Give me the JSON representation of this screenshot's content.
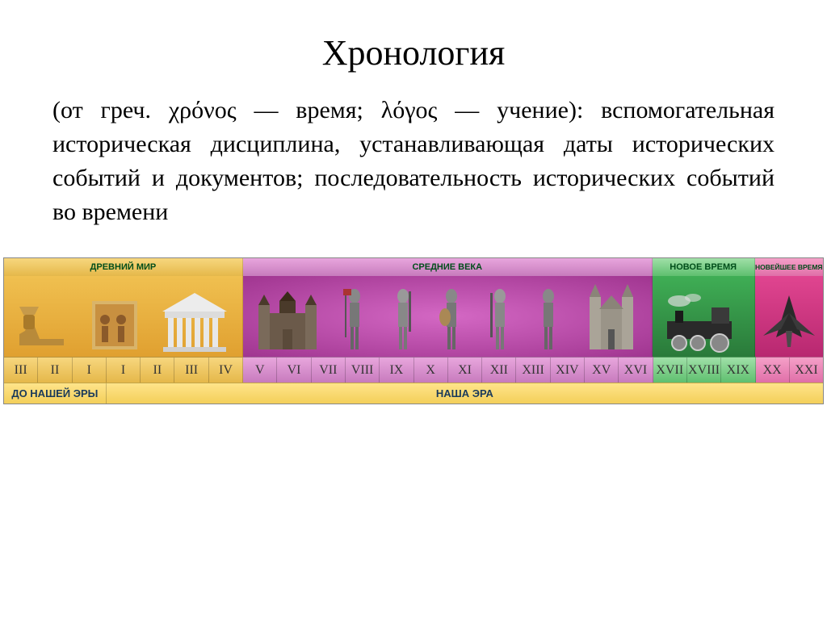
{
  "title": "Хронология",
  "definition": "(от греч. χρόνος — время; λόγος — учение): вспомогательная историческая дисциплина, устанавливающая даты исторических событий и документов; последовательность исторических событий во времени",
  "timeline": {
    "eras": [
      {
        "key": "ancient",
        "label": "ДРЕВНИЙ МИР",
        "width_pct": 29.17,
        "header_bg": "linear-gradient(180deg,#f7d77e,#e5b84a)"
      },
      {
        "key": "middle",
        "label": "СРЕДНИЕ ВЕКА",
        "width_pct": 50.0,
        "header_bg": "linear-gradient(180deg,#e8a6dd,#c77bbd)"
      },
      {
        "key": "modern",
        "label": "НОВОЕ ВРЕМЯ",
        "width_pct": 12.5,
        "header_bg": "linear-gradient(180deg,#a0e0a8,#5fbf6f)"
      },
      {
        "key": "newest",
        "label": "НОВЕЙШЕЕ ВРЕМЯ",
        "width_pct": 8.33,
        "header_bg": "linear-gradient(180deg,#f5a0c8,#e06fa8)"
      }
    ],
    "centuries": [
      {
        "num": "III",
        "era": "ancient"
      },
      {
        "num": "II",
        "era": "ancient"
      },
      {
        "num": "I",
        "era": "ancient"
      },
      {
        "num": "I",
        "era": "ancient"
      },
      {
        "num": "II",
        "era": "ancient"
      },
      {
        "num": "III",
        "era": "ancient"
      },
      {
        "num": "IV",
        "era": "ancient"
      },
      {
        "num": "V",
        "era": "middle"
      },
      {
        "num": "VI",
        "era": "middle"
      },
      {
        "num": "VII",
        "era": "middle"
      },
      {
        "num": "VIII",
        "era": "middle"
      },
      {
        "num": "IX",
        "era": "middle"
      },
      {
        "num": "X",
        "era": "middle"
      },
      {
        "num": "XI",
        "era": "middle"
      },
      {
        "num": "XII",
        "era": "middle"
      },
      {
        "num": "XIII",
        "era": "middle"
      },
      {
        "num": "XIV",
        "era": "middle"
      },
      {
        "num": "XV",
        "era": "middle"
      },
      {
        "num": "XVI",
        "era": "middle"
      },
      {
        "num": "XVII",
        "era": "modern"
      },
      {
        "num": "XVIII",
        "era": "modern"
      },
      {
        "num": "XIX",
        "era": "modern"
      },
      {
        "num": "XX",
        "era": "newest"
      },
      {
        "num": "XXI",
        "era": "newest"
      }
    ],
    "footer": {
      "bc": {
        "label": "ДО НАШЕЙ ЭРЫ",
        "width_pct": 12.5
      },
      "ad": {
        "label": "НАША ЭРА",
        "width_pct": 87.5
      }
    },
    "colors": {
      "ancient": "#e0a030",
      "middle": "#a03590",
      "modern": "#2a7a3a",
      "newest": "#b82870",
      "century_text": "#333333",
      "header_text": "#004d1a",
      "footer_bg": "#f3cf5a",
      "footer_text": "#1a3a5a"
    },
    "fonts": {
      "title_pt": 44,
      "definition_pt": 30,
      "era_header_pt": 11,
      "century_pt": 16,
      "footer_pt": 13
    }
  }
}
